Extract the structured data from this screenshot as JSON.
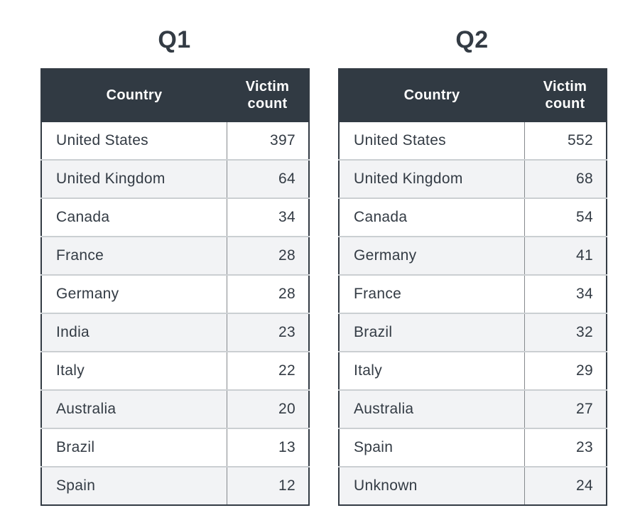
{
  "colors": {
    "page_bg": "#ffffff",
    "header_bg": "#313a43",
    "header_text": "#ffffff",
    "body_text": "#333b44",
    "stripe_bg": "#f2f3f5",
    "row_line": "#cbcfd2",
    "col_line": "#85898d",
    "outer_border": "#333b44"
  },
  "chart_data": [
    {
      "type": "table",
      "title": "Q1",
      "columns": [
        "Country",
        "Victim count"
      ],
      "rows": [
        [
          "United States",
          397
        ],
        [
          "United Kingdom",
          64
        ],
        [
          "Canada",
          34
        ],
        [
          "France",
          28
        ],
        [
          "Germany",
          28
        ],
        [
          "India",
          23
        ],
        [
          "Italy",
          22
        ],
        [
          "Australia",
          20
        ],
        [
          "Brazil",
          13
        ],
        [
          "Spain",
          12
        ]
      ]
    },
    {
      "type": "table",
      "title": "Q2",
      "columns": [
        "Country",
        "Victim count"
      ],
      "rows": [
        [
          "United States",
          552
        ],
        [
          "United Kingdom",
          68
        ],
        [
          "Canada",
          54
        ],
        [
          "Germany",
          41
        ],
        [
          "France",
          34
        ],
        [
          "Brazil",
          32
        ],
        [
          "Italy",
          29
        ],
        [
          "Australia",
          27
        ],
        [
          "Spain",
          23
        ],
        [
          "Unknown",
          24
        ]
      ]
    }
  ]
}
